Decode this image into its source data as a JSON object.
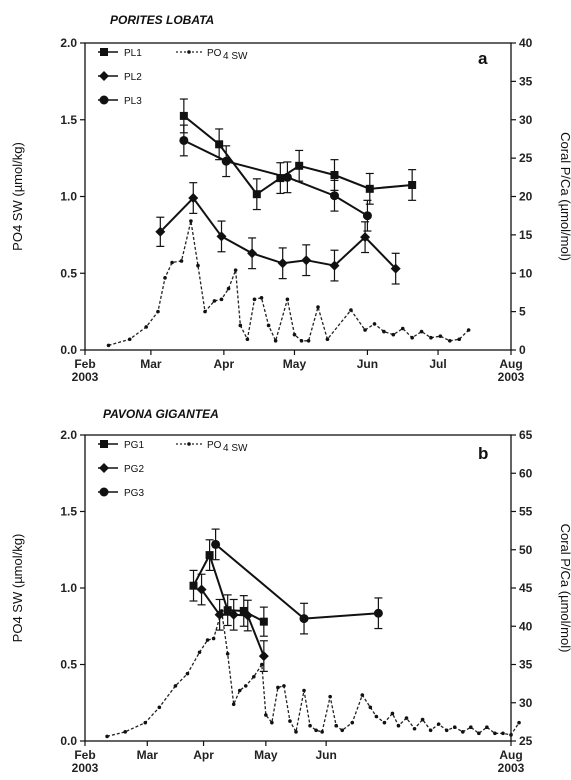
{
  "chart_data": [
    {
      "type": "line",
      "panel_title": "PORITES LOBATA",
      "panel_letter": "a",
      "ylabel": "PO4 SW (µmol/kg)",
      "y2label": "Coral P/Ca (µmol/mol)",
      "ylim": [
        0,
        2.0
      ],
      "y2lim": [
        0,
        40
      ],
      "yticks": [
        "0.0",
        "0.5",
        "1.0",
        "1.5",
        "2.0"
      ],
      "y2ticks": [
        "0",
        "5",
        "10",
        "15",
        "20",
        "25",
        "30",
        "35",
        "40"
      ],
      "xticks": [
        {
          "l1": "Feb",
          "l2": "2003"
        },
        {
          "l1": "Mar",
          "l2": ""
        },
        {
          "l1": "Apr",
          "l2": ""
        },
        {
          "l1": "May",
          "l2": ""
        },
        {
          "l1": "Jun",
          "l2": ""
        },
        {
          "l1": "Jul",
          "l2": ""
        },
        {
          "l1": "Aug",
          "l2": "2003"
        }
      ],
      "legend": [
        "PL1",
        "PL2",
        "PL3"
      ],
      "legend_sw": {
        "main": "PO",
        "sub": "4 SW"
      },
      "coral_series": [
        {
          "name": "PL1",
          "marker": "square",
          "points": [
            {
              "x": "2003-03-15",
              "y": 30.5,
              "err": 2.2
            },
            {
              "x": "2003-03-30",
              "y": 26.8,
              "err": 2.0
            },
            {
              "x": "2003-04-15",
              "y": 20.3,
              "err": 2.0
            },
            {
              "x": "2003-04-25",
              "y": 22.4,
              "err": 2.0
            },
            {
              "x": "2003-05-03",
              "y": 24.0,
              "err": 2.0
            },
            {
              "x": "2003-05-18",
              "y": 22.8,
              "err": 2.0
            },
            {
              "x": "2003-06-02",
              "y": 21.0,
              "err": 2.0
            },
            {
              "x": "2003-06-20",
              "y": 21.5,
              "err": 2.0
            }
          ]
        },
        {
          "name": "PL2",
          "marker": "diamond",
          "points": [
            {
              "x": "2003-03-05",
              "y": 15.4,
              "err": 1.9
            },
            {
              "x": "2003-03-19",
              "y": 19.8,
              "err": 2.0
            },
            {
              "x": "2003-03-31",
              "y": 14.8,
              "err": 2.0
            },
            {
              "x": "2003-04-13",
              "y": 12.6,
              "err": 2.0
            },
            {
              "x": "2003-04-26",
              "y": 11.3,
              "err": 2.0
            },
            {
              "x": "2003-05-06",
              "y": 11.7,
              "err": 2.0
            },
            {
              "x": "2003-05-18",
              "y": 11.0,
              "err": 2.0
            },
            {
              "x": "2003-05-31",
              "y": 14.7,
              "err": 2.0
            },
            {
              "x": "2003-06-13",
              "y": 10.6,
              "err": 2.0
            }
          ]
        },
        {
          "name": "PL3",
          "marker": "circle",
          "points": [
            {
              "x": "2003-03-15",
              "y": 27.3,
              "err": 2.0
            },
            {
              "x": "2003-04-02",
              "y": 24.6,
              "err": 2.0
            },
            {
              "x": "2003-04-28",
              "y": 22.5,
              "err": 2.0
            },
            {
              "x": "2003-05-18",
              "y": 20.1,
              "err": 2.0
            },
            {
              "x": "2003-06-01",
              "y": 17.5,
              "err": 2.0
            }
          ]
        }
      ],
      "sw_series": {
        "name": "PO4 SW",
        "points": [
          {
            "x": "2003-02-11",
            "y": 0.03
          },
          {
            "x": "2003-02-20",
            "y": 0.07
          },
          {
            "x": "2003-02-27",
            "y": 0.15
          },
          {
            "x": "2003-03-04",
            "y": 0.25
          },
          {
            "x": "2003-03-07",
            "y": 0.47
          },
          {
            "x": "2003-03-10",
            "y": 0.57
          },
          {
            "x": "2003-03-14",
            "y": 0.58
          },
          {
            "x": "2003-03-18",
            "y": 0.84
          },
          {
            "x": "2003-03-21",
            "y": 0.55
          },
          {
            "x": "2003-03-24",
            "y": 0.25
          },
          {
            "x": "2003-03-28",
            "y": 0.32
          },
          {
            "x": "2003-03-31",
            "y": 0.33
          },
          {
            "x": "2003-04-03",
            "y": 0.4
          },
          {
            "x": "2003-04-06",
            "y": 0.52
          },
          {
            "x": "2003-04-08",
            "y": 0.16
          },
          {
            "x": "2003-04-11",
            "y": 0.07
          },
          {
            "x": "2003-04-14",
            "y": 0.33
          },
          {
            "x": "2003-04-17",
            "y": 0.34
          },
          {
            "x": "2003-04-20",
            "y": 0.16
          },
          {
            "x": "2003-04-23",
            "y": 0.06
          },
          {
            "x": "2003-04-28",
            "y": 0.33
          },
          {
            "x": "2003-05-01",
            "y": 0.1
          },
          {
            "x": "2003-05-04",
            "y": 0.06
          },
          {
            "x": "2003-05-07",
            "y": 0.06
          },
          {
            "x": "2003-05-11",
            "y": 0.28
          },
          {
            "x": "2003-05-15",
            "y": 0.07
          },
          {
            "x": "2003-05-25",
            "y": 0.26
          },
          {
            "x": "2003-05-31",
            "y": 0.13
          },
          {
            "x": "2003-06-04",
            "y": 0.17
          },
          {
            "x": "2003-06-08",
            "y": 0.12
          },
          {
            "x": "2003-06-12",
            "y": 0.1
          },
          {
            "x": "2003-06-16",
            "y": 0.14
          },
          {
            "x": "2003-06-20",
            "y": 0.08
          },
          {
            "x": "2003-06-24",
            "y": 0.12
          },
          {
            "x": "2003-06-28",
            "y": 0.08
          },
          {
            "x": "2003-07-02",
            "y": 0.09
          },
          {
            "x": "2003-07-06",
            "y": 0.06
          },
          {
            "x": "2003-07-10",
            "y": 0.07
          },
          {
            "x": "2003-07-14",
            "y": 0.13
          }
        ]
      }
    },
    {
      "type": "line",
      "panel_title": "PAVONA GIGANTEA",
      "panel_letter": "b",
      "ylabel": "PO4 SW (µmol/kg)",
      "y2label": "Coral P/Ca (µmol/mol)",
      "ylim": [
        0,
        2.0
      ],
      "y2lim": [
        25,
        65
      ],
      "yticks": [
        "0.0",
        "0.5",
        "1.0",
        "1.5",
        "2.0"
      ],
      "y2ticks": [
        "25",
        "30",
        "35",
        "40",
        "45",
        "50",
        "55",
        "60",
        "65"
      ],
      "xticks": [
        {
          "l1": "Feb",
          "l2": "2003"
        },
        {
          "l1": "Mar",
          "l2": ""
        },
        {
          "l1": "Apr",
          "l2": ""
        },
        {
          "l1": "May",
          "l2": ""
        },
        {
          "l1": "Jun",
          "l2": ""
        },
        {
          "l1": "Aug",
          "l2": "2003"
        }
      ],
      "legend": [
        "PG1",
        "PG2",
        "PG3"
      ],
      "legend_sw": {
        "main": "PO",
        "sub": "4 SW"
      },
      "coral_series": [
        {
          "name": "PG1",
          "marker": "square",
          "points": [
            {
              "x": "2003-02-24",
              "y": 45.3,
              "err": 2.0
            },
            {
              "x": "2003-03-04",
              "y": 49.3,
              "err": 2.0
            },
            {
              "x": "2003-03-13",
              "y": 42.1,
              "err": 2.0
            },
            {
              "x": "2003-03-21",
              "y": 42.0,
              "err": 2.0
            },
            {
              "x": "2003-03-31",
              "y": 40.6,
              "err": 1.9
            }
          ]
        },
        {
          "name": "PG2",
          "marker": "diamond",
          "points": [
            {
              "x": "2003-02-28",
              "y": 44.8,
              "err": 2.0
            },
            {
              "x": "2003-03-09",
              "y": 41.5,
              "err": 2.0
            },
            {
              "x": "2003-03-16",
              "y": 41.5,
              "err": 2.0
            },
            {
              "x": "2003-03-23",
              "y": 41.4,
              "err": 2.0
            },
            {
              "x": "2003-03-31",
              "y": 36.1,
              "err": 2.0
            }
          ]
        },
        {
          "name": "PG3",
          "marker": "circle",
          "points": [
            {
              "x": "2003-03-07",
              "y": 50.7,
              "err": 2.0
            },
            {
              "x": "2003-04-20",
              "y": 41.0,
              "err": 2.0
            },
            {
              "x": "2003-05-27",
              "y": 41.7,
              "err": 2.0
            }
          ]
        }
      ],
      "sw_series": {
        "name": "PO4 SW",
        "points": [
          {
            "x": "2003-01-12",
            "y": 0.03
          },
          {
            "x": "2003-01-21",
            "y": 0.06
          },
          {
            "x": "2003-01-31",
            "y": 0.12
          },
          {
            "x": "2003-02-07",
            "y": 0.22
          },
          {
            "x": "2003-02-15",
            "y": 0.36
          },
          {
            "x": "2003-02-21",
            "y": 0.44
          },
          {
            "x": "2003-02-27",
            "y": 0.58
          },
          {
            "x": "2003-03-03",
            "y": 0.66
          },
          {
            "x": "2003-03-06",
            "y": 0.67
          },
          {
            "x": "2003-03-10",
            "y": 0.85
          },
          {
            "x": "2003-03-13",
            "y": 0.57
          },
          {
            "x": "2003-03-16",
            "y": 0.24
          },
          {
            "x": "2003-03-19",
            "y": 0.33
          },
          {
            "x": "2003-03-22",
            "y": 0.36
          },
          {
            "x": "2003-03-26",
            "y": 0.42
          },
          {
            "x": "2003-03-30",
            "y": 0.5
          },
          {
            "x": "2003-04-01",
            "y": 0.17
          },
          {
            "x": "2003-04-04",
            "y": 0.12
          },
          {
            "x": "2003-04-07",
            "y": 0.35
          },
          {
            "x": "2003-04-10",
            "y": 0.36
          },
          {
            "x": "2003-04-13",
            "y": 0.13
          },
          {
            "x": "2003-04-16",
            "y": 0.06
          },
          {
            "x": "2003-04-20",
            "y": 0.33
          },
          {
            "x": "2003-04-23",
            "y": 0.1
          },
          {
            "x": "2003-04-26",
            "y": 0.07
          },
          {
            "x": "2003-04-29",
            "y": 0.06
          },
          {
            "x": "2003-05-03",
            "y": 0.29
          },
          {
            "x": "2003-05-06",
            "y": 0.1
          },
          {
            "x": "2003-05-09",
            "y": 0.07
          },
          {
            "x": "2003-05-14",
            "y": 0.12
          },
          {
            "x": "2003-05-19",
            "y": 0.3
          },
          {
            "x": "2003-05-23",
            "y": 0.22
          },
          {
            "x": "2003-05-26",
            "y": 0.16
          },
          {
            "x": "2003-05-30",
            "y": 0.12
          },
          {
            "x": "2003-06-03",
            "y": 0.18
          },
          {
            "x": "2003-06-06",
            "y": 0.1
          },
          {
            "x": "2003-06-10",
            "y": 0.15
          },
          {
            "x": "2003-06-14",
            "y": 0.08
          },
          {
            "x": "2003-06-18",
            "y": 0.14
          },
          {
            "x": "2003-06-22",
            "y": 0.07
          },
          {
            "x": "2003-06-26",
            "y": 0.11
          },
          {
            "x": "2003-06-30",
            "y": 0.07
          },
          {
            "x": "2003-07-04",
            "y": 0.09
          },
          {
            "x": "2003-07-08",
            "y": 0.06
          },
          {
            "x": "2003-07-12",
            "y": 0.09
          },
          {
            "x": "2003-07-16",
            "y": 0.05
          },
          {
            "x": "2003-07-20",
            "y": 0.09
          },
          {
            "x": "2003-07-24",
            "y": 0.05
          },
          {
            "x": "2003-07-28",
            "y": 0.05
          },
          {
            "x": "2003-08-01",
            "y": 0.04
          },
          {
            "x": "2003-08-05",
            "y": 0.12
          }
        ]
      }
    }
  ]
}
